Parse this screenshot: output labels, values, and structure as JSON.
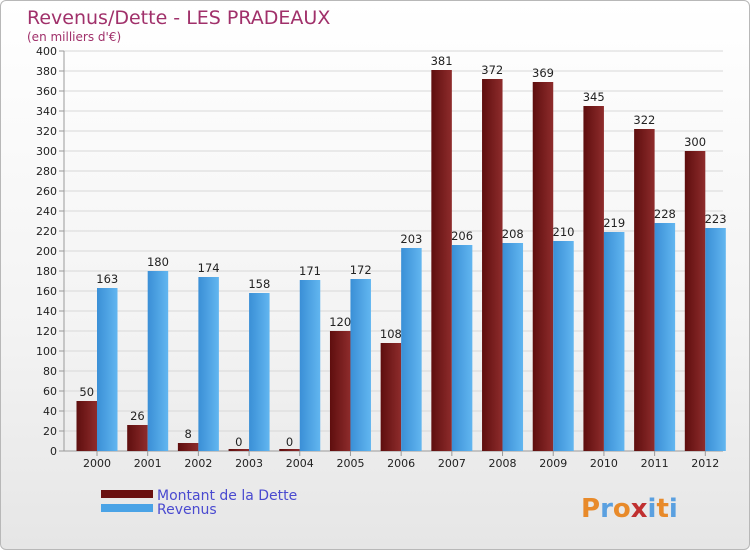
{
  "chart_data": {
    "type": "bar",
    "title": "Revenus/Dette - LES PRADEAUX",
    "subtitle": "(en milliers d'€)",
    "categories": [
      "2000",
      "2001",
      "2002",
      "2003",
      "2004",
      "2005",
      "2006",
      "2007",
      "2008",
      "2009",
      "2010",
      "2011",
      "2012"
    ],
    "series": [
      {
        "name": "Montant de la Dette",
        "color": "#7a1a1a",
        "values": [
          50,
          26,
          8,
          0,
          0,
          120,
          108,
          381,
          372,
          369,
          345,
          322,
          300
        ]
      },
      {
        "name": "Revenus",
        "color": "#4aa3e6",
        "values": [
          163,
          180,
          174,
          158,
          171,
          172,
          203,
          206,
          208,
          210,
          219,
          228,
          223
        ]
      }
    ],
    "ylim": [
      0,
      400
    ],
    "yticks": [
      0,
      20,
      40,
      60,
      80,
      100,
      120,
      140,
      160,
      180,
      200,
      220,
      240,
      260,
      280,
      300,
      320,
      340,
      360,
      380,
      400
    ],
    "grid": true,
    "legend": "bottom-left"
  },
  "logo": {
    "letters": [
      "P",
      "r",
      "o",
      "x",
      "i",
      "t",
      "i"
    ],
    "colors": [
      "#e88a2a",
      "#5aa0e0",
      "#e88a2a",
      "#c03030",
      "#5aa0e0",
      "#e88a2a",
      "#5aa0e0"
    ]
  }
}
